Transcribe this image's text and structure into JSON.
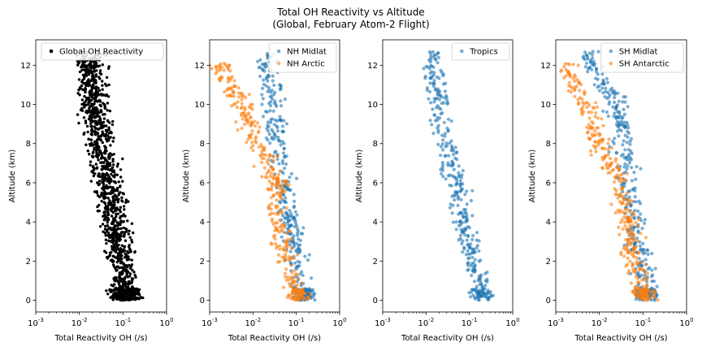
{
  "figure": {
    "title_line1": "Total OH Reactivity vs Altitude",
    "title_line2": "(Global, February Atom-2 Flight)"
  },
  "colors": {
    "global": "#000000",
    "blue": "#1f77b4",
    "orange": "#ff7f0e"
  },
  "chart_data": [
    {
      "type": "scatter",
      "xscale": "log",
      "xlim": [
        0.001,
        1
      ],
      "ylim": [
        -0.6,
        13.3
      ],
      "xlabel": "Total Reactivity OH (/s)",
      "ylabel": "Altitude (km)",
      "xticks": [
        "10^-3",
        "10^-2",
        "10^-1",
        "10^0"
      ],
      "yticks": [
        0,
        2,
        4,
        6,
        8,
        10,
        12
      ],
      "legend_position": "top-right",
      "series": [
        {
          "name": "Global OH Reactivity",
          "color": "#000000",
          "profile": [
            [
              0,
              0.12
            ],
            [
              2,
              0.09
            ],
            [
              4,
              0.065
            ],
            [
              6,
              0.045
            ],
            [
              8,
              0.03
            ],
            [
              10,
              0.022
            ],
            [
              12,
              0.018
            ]
          ]
        }
      ]
    },
    {
      "type": "scatter",
      "xscale": "log",
      "xlim": [
        0.001,
        1
      ],
      "ylim": [
        -0.6,
        13.3
      ],
      "xlabel": "Total Reactivity OH (/s)",
      "ylabel": "Altitude (km)",
      "xticks": [
        "10^-3",
        "10^-2",
        "10^-1",
        "10^0"
      ],
      "yticks": [
        0,
        2,
        4,
        6,
        8,
        10,
        12
      ],
      "legend_position": "top-right",
      "series": [
        {
          "name": "NH Midlat",
          "color": "#1f77b4",
          "profile": [
            [
              0,
              0.15
            ],
            [
              2,
              0.11
            ],
            [
              4,
              0.07
            ],
            [
              6,
              0.05
            ],
            [
              8,
              0.035
            ],
            [
              10,
              0.03
            ],
            [
              12,
              0.02
            ]
          ]
        },
        {
          "name": "NH Arctic",
          "color": "#ff7f0e",
          "profile": [
            [
              0,
              0.13
            ],
            [
              2,
              0.06
            ],
            [
              4,
              0.04
            ],
            [
              6,
              0.035
            ],
            [
              8,
              0.012
            ],
            [
              10,
              0.006
            ],
            [
              11.5,
              0.002
            ]
          ]
        }
      ]
    },
    {
      "type": "scatter",
      "xscale": "log",
      "xlim": [
        0.001,
        1
      ],
      "ylim": [
        -0.6,
        13.3
      ],
      "xlabel": "Total Reactivity OH (/s)",
      "ylabel": "Altitude (km)",
      "xticks": [
        "10^-3",
        "10^-2",
        "10^-1",
        "10^0"
      ],
      "yticks": [
        0,
        2,
        4,
        6,
        8,
        10,
        12
      ],
      "legend_position": "top-right",
      "series": [
        {
          "name": "Tropics",
          "color": "#1f77b4",
          "profile": [
            [
              0,
              0.2
            ],
            [
              2,
              0.13
            ],
            [
              4,
              0.07
            ],
            [
              6,
              0.05
            ],
            [
              8,
              0.03
            ],
            [
              10,
              0.02
            ],
            [
              12,
              0.015
            ]
          ]
        }
      ]
    },
    {
      "type": "scatter",
      "xscale": "log",
      "xlim": [
        0.001,
        1
      ],
      "ylim": [
        -0.6,
        13.3
      ],
      "xlabel": "Total Reactivity OH (/s)",
      "ylabel": "Altitude (km)",
      "xticks": [
        "10^-3",
        "10^-2",
        "10^-1",
        "10^0"
      ],
      "yticks": [
        0,
        2,
        4,
        6,
        8,
        10,
        12
      ],
      "legend_position": "top-right",
      "series": [
        {
          "name": "SH Midlat",
          "color": "#1f77b4",
          "profile": [
            [
              0,
              0.13
            ],
            [
              2,
              0.09
            ],
            [
              4,
              0.06
            ],
            [
              6,
              0.05
            ],
            [
              8,
              0.035
            ],
            [
              10,
              0.025
            ],
            [
              12,
              0.006
            ]
          ]
        },
        {
          "name": "SH Antarctic",
          "color": "#ff7f0e",
          "profile": [
            [
              0,
              0.12
            ],
            [
              2,
              0.06
            ],
            [
              4,
              0.045
            ],
            [
              6,
              0.03
            ],
            [
              8,
              0.01
            ],
            [
              10,
              0.005
            ],
            [
              11.5,
              0.002
            ]
          ]
        }
      ]
    }
  ]
}
